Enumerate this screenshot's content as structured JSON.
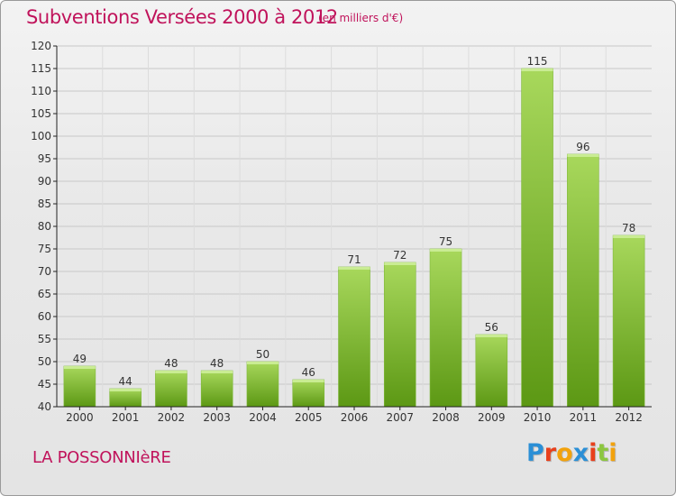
{
  "title": "Subventions Versées 2000 à 2012",
  "subtitle": "(en milliers d'€)",
  "commune": "LA POSSONNIèRE",
  "logo": {
    "letters": [
      "P",
      "r",
      "o",
      "x",
      "i",
      "t",
      "i"
    ],
    "colors": [
      "#2b8fd6",
      "#e8401c",
      "#f2a20c",
      "#2b8fd6",
      "#e8401c",
      "#8cc63f",
      "#f2a20c"
    ]
  },
  "colors": {
    "title": "#c0135b",
    "bar_light": "#a5d45a",
    "bar_dark": "#5f9a16",
    "grid": "#c8c8c8",
    "axis": "#222222"
  },
  "chart_data": {
    "type": "bar",
    "categories": [
      "2000",
      "2001",
      "2002",
      "2003",
      "2004",
      "2005",
      "2006",
      "2007",
      "2008",
      "2009",
      "2010",
      "2011",
      "2012"
    ],
    "values": [
      49,
      44,
      48,
      48,
      50,
      46,
      71,
      72,
      75,
      56,
      115,
      96,
      78
    ],
    "ylim": [
      40,
      120
    ],
    "yticks": [
      40,
      45,
      50,
      55,
      60,
      65,
      70,
      75,
      80,
      85,
      90,
      95,
      100,
      105,
      110,
      115,
      120
    ],
    "grid": true,
    "data_labels": true
  }
}
